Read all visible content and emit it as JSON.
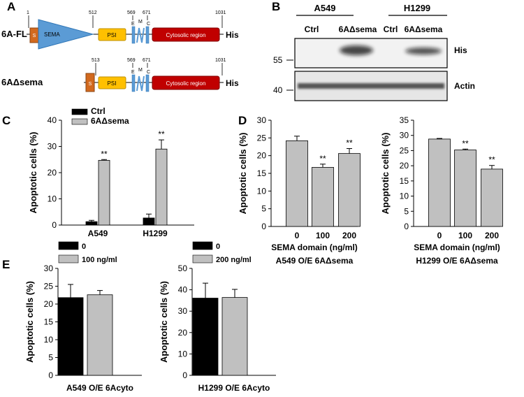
{
  "panel_labels": {
    "a": "A",
    "b": "B",
    "c": "C",
    "d": "D",
    "e": "E"
  },
  "panel_a": {
    "full_label": "6A-FL",
    "sema_label": "6AΔsema",
    "tag": "His",
    "domains": {
      "s": "S",
      "sema": "SEMA",
      "psi": "PSI",
      "e": "E",
      "m": "M",
      "c": "C",
      "cyto": "Cytosolic region"
    },
    "fl_positions": {
      "p1": "1",
      "p2": "512",
      "p3": "569",
      "p4": "671",
      "p5": "1031"
    },
    "sema_positions": {
      "p1": "513",
      "p2": "569",
      "p3": "671",
      "p4": "1031"
    },
    "colors": {
      "s": "#d2691e",
      "sema": "#5b9bd5",
      "psi": "#ffc000",
      "tm": "#5b9bd5",
      "cyto": "#c00000"
    }
  },
  "panel_b": {
    "group1": "A549",
    "group2": "H1299",
    "lanes": [
      "Ctrl",
      "6AΔsema",
      "Ctrl",
      "6AΔsema"
    ],
    "his_label": "His",
    "actin_label": "Actin",
    "mw_his": "55",
    "mw_actin": "40"
  },
  "chart_data": [
    {
      "id": "C",
      "type": "bar",
      "ylabel": "Apoptotic cells (%)",
      "ylim": [
        0,
        40
      ],
      "yticks": [
        "0",
        "10",
        "20",
        "30",
        "40"
      ],
      "categories": [
        "A549",
        "H1299"
      ],
      "series": [
        {
          "name": "Ctrl",
          "values": [
            1.3,
            2.7
          ],
          "errors": [
            0.5,
            1.5
          ],
          "color": "#000000"
        },
        {
          "name": "6AΔsema",
          "values": [
            24.7,
            29.0
          ],
          "errors": [
            0.3,
            3.5
          ],
          "color": "#c0c0c0"
        }
      ],
      "annotations": [
        "**",
        "**"
      ],
      "legend": "top-left"
    },
    {
      "id": "D1",
      "type": "bar",
      "ylabel": "Apoptotic cells (%)",
      "xlabel": "SEMA domain (ng/ml)",
      "caption": "A549 O/E 6AΔsema",
      "ylim": [
        0,
        30
      ],
      "yticks": [
        "0",
        "5",
        "10",
        "15",
        "20",
        "25",
        "30"
      ],
      "categories": [
        "0",
        "100",
        "200"
      ],
      "values": [
        24.2,
        16.7,
        20.6
      ],
      "errors": [
        1.3,
        0.9,
        1.4
      ],
      "annotations": [
        "",
        "**",
        "**"
      ],
      "color": "#c0c0c0"
    },
    {
      "id": "D2",
      "type": "bar",
      "ylabel": "Apoptotic cells (%)",
      "xlabel": "SEMA domain (ng/ml)",
      "caption": "H1299 O/E 6AΔsema",
      "ylim": [
        0,
        35
      ],
      "yticks": [
        "0",
        "5",
        "10",
        "15",
        "20",
        "25",
        "30",
        "35"
      ],
      "categories": [
        "0",
        "100",
        "200"
      ],
      "values": [
        28.8,
        25.2,
        18.9
      ],
      "errors": [
        0.2,
        0.3,
        1.2
      ],
      "annotations": [
        "",
        "**",
        "**"
      ],
      "color": "#c0c0c0"
    },
    {
      "id": "E1",
      "type": "bar",
      "ylabel": "Apoptotic cells (%)",
      "caption": "A549 O/E 6Acyto",
      "ylim": [
        0,
        30
      ],
      "yticks": [
        "0",
        "5",
        "10",
        "15",
        "20",
        "25",
        "30"
      ],
      "series": [
        {
          "name": "0",
          "values": [
            21.8
          ],
          "errors": [
            3.7
          ],
          "color": "#000000"
        },
        {
          "name": "100 ng/ml",
          "values": [
            22.6
          ],
          "errors": [
            1.2
          ],
          "color": "#c0c0c0"
        }
      ],
      "legend": "top"
    },
    {
      "id": "E2",
      "type": "bar",
      "ylabel": "Apoptotic cells (%)",
      "caption": "H1299 O/E 6Acyto",
      "ylim": [
        0,
        50
      ],
      "yticks": [
        "0",
        "10",
        "20",
        "30",
        "40",
        "50"
      ],
      "series": [
        {
          "name": "0",
          "values": [
            36.1
          ],
          "errors": [
            7.0
          ],
          "color": "#000000"
        },
        {
          "name": "200 ng/ml",
          "values": [
            36.4
          ],
          "errors": [
            3.8
          ],
          "color": "#c0c0c0"
        }
      ],
      "legend": "top"
    }
  ]
}
